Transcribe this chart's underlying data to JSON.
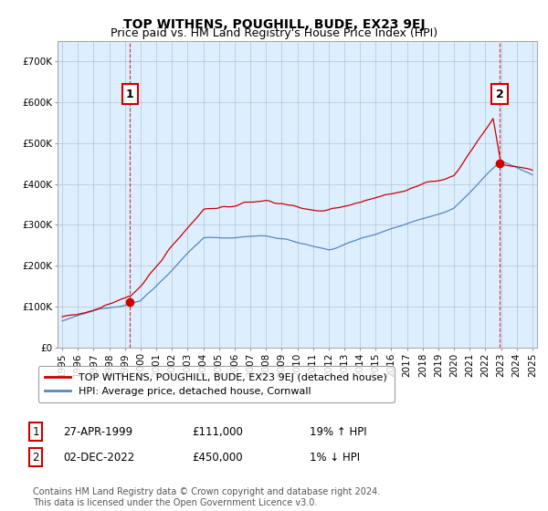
{
  "title": "TOP WITHENS, POUGHILL, BUDE, EX23 9EJ",
  "subtitle": "Price paid vs. HM Land Registry's House Price Index (HPI)",
  "ylim": [
    0,
    750000
  ],
  "yticks": [
    0,
    100000,
    200000,
    300000,
    400000,
    500000,
    600000,
    700000
  ],
  "ytick_labels": [
    "£0",
    "£100K",
    "£200K",
    "£300K",
    "£400K",
    "£500K",
    "£600K",
    "£700K"
  ],
  "xlim_start": 1994.7,
  "xlim_end": 2025.3,
  "plot_bg_color": "#ddeeff",
  "background_color": "#ffffff",
  "grid_color": "#aabbcc",
  "sale1_x": 1999.32,
  "sale1_y": 111000,
  "sale1_label": "1",
  "sale1_date": "27-APR-1999",
  "sale1_price": "£111,000",
  "sale1_hpi": "19% ↑ HPI",
  "sale2_x": 2022.92,
  "sale2_y": 450000,
  "sale2_label": "2",
  "sale2_date": "02-DEC-2022",
  "sale2_price": "£450,000",
  "sale2_hpi": "1% ↓ HPI",
  "red_line_color": "#cc0000",
  "blue_line_color": "#5588bb",
  "legend_label_red": "TOP WITHENS, POUGHILL, BUDE, EX23 9EJ (detached house)",
  "legend_label_blue": "HPI: Average price, detached house, Cornwall",
  "footer": "Contains HM Land Registry data © Crown copyright and database right 2024.\nThis data is licensed under the Open Government Licence v3.0.",
  "title_fontsize": 10,
  "subtitle_fontsize": 9,
  "tick_fontsize": 7.5,
  "legend_fontsize": 8,
  "footer_fontsize": 7
}
